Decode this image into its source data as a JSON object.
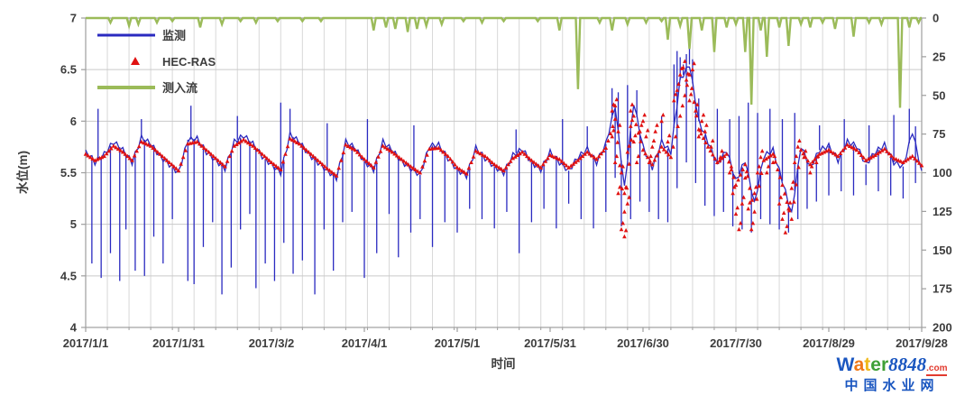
{
  "chart_data": {
    "type": "line",
    "title": "",
    "xlabel": "时间",
    "ylabel_left": "水位(m)",
    "ylabel_right": "",
    "legend": {
      "position": "top-left",
      "items": [
        "监测",
        "HEC-RAS",
        "测入流"
      ]
    },
    "x_axis": {
      "total_days": 270,
      "tick_days": [
        0,
        30,
        60,
        90,
        120,
        150,
        180,
        210,
        240,
        270
      ],
      "tick_labels": [
        "2017/1/1",
        "2017/1/31",
        "2017/3/2",
        "2017/4/1",
        "2017/5/1",
        "2017/5/31",
        "2017/6/30",
        "2017/7/30",
        "2017/8/29",
        "2017/9/28"
      ],
      "grid_every_days": 7
    },
    "y_left": {
      "min": 4,
      "max": 7,
      "ticks": [
        7,
        6.5,
        6,
        5.5,
        5,
        4.5,
        4
      ]
    },
    "y_right": {
      "min": 0,
      "max": 200,
      "ticks": [
        0,
        25,
        50,
        75,
        100,
        125,
        150,
        175,
        200
      ],
      "inverted": true
    },
    "colors": {
      "monitoring": "#2a2ac0",
      "hecras": "#e01212",
      "inflow": "#9bbb59",
      "grid": "#d8d8d8",
      "border": "#9e9e9e",
      "text": "#3d3d3d"
    },
    "series": [
      {
        "name": "监测",
        "type": "line",
        "axis": "left",
        "color": "#2a2ac0",
        "x_step_days": 3,
        "noise_amp": 0.025,
        "y": [
          5.72,
          5.6,
          5.68,
          5.8,
          5.72,
          5.6,
          5.84,
          5.78,
          5.66,
          5.58,
          5.5,
          5.82,
          5.83,
          5.7,
          5.62,
          5.54,
          5.8,
          5.86,
          5.78,
          5.66,
          5.58,
          5.5,
          5.87,
          5.8,
          5.68,
          5.6,
          5.52,
          5.45,
          5.8,
          5.74,
          5.61,
          5.53,
          5.8,
          5.72,
          5.61,
          5.54,
          5.48,
          5.76,
          5.77,
          5.64,
          5.53,
          5.47,
          5.74,
          5.64,
          5.56,
          5.5,
          5.67,
          5.73,
          5.6,
          5.53,
          5.7,
          5.6,
          5.52,
          5.65,
          5.73,
          5.6,
          5.78,
          6.15,
          5.35,
          6.18,
          5.75,
          5.55,
          5.8,
          5.7,
          6.4,
          6.55,
          6.0,
          5.8,
          5.58,
          5.72,
          5.42,
          5.62,
          5.2,
          5.66,
          5.72,
          5.42,
          5.1,
          5.76,
          5.55,
          5.72,
          5.76,
          5.62,
          5.8,
          5.76,
          5.58,
          5.7,
          5.77,
          5.6,
          5.56,
          5.9,
          5.52
        ],
        "down_spikes": [
          [
            2,
            4.62
          ],
          [
            5,
            4.48
          ],
          [
            8,
            4.72
          ],
          [
            11,
            4.45
          ],
          [
            13,
            4.95
          ],
          [
            16,
            4.55
          ],
          [
            19,
            4.5
          ],
          [
            22,
            4.88
          ],
          [
            25,
            4.62
          ],
          [
            28,
            5.05
          ],
          [
            33,
            4.45
          ],
          [
            35,
            4.42
          ],
          [
            38,
            4.78
          ],
          [
            41,
            5.02
          ],
          [
            44,
            4.32
          ],
          [
            47,
            4.58
          ],
          [
            50,
            4.95
          ],
          [
            53,
            5.1
          ],
          [
            55,
            4.38
          ],
          [
            58,
            4.62
          ],
          [
            61,
            4.45
          ],
          [
            64,
            4.82
          ],
          [
            67,
            4.52
          ],
          [
            70,
            4.65
          ],
          [
            74,
            4.32
          ],
          [
            77,
            4.95
          ],
          [
            80,
            4.55
          ],
          [
            83,
            5.02
          ],
          [
            86,
            5.12
          ],
          [
            90,
            4.48
          ],
          [
            94,
            4.72
          ],
          [
            98,
            5.1
          ],
          [
            101,
            4.68
          ],
          [
            105,
            4.92
          ],
          [
            108,
            5.05
          ],
          [
            112,
            4.78
          ],
          [
            116,
            5.02
          ],
          [
            120,
            4.92
          ],
          [
            124,
            5.15
          ],
          [
            128,
            5.05
          ],
          [
            132,
            4.96
          ],
          [
            136,
            5.12
          ],
          [
            140,
            4.72
          ],
          [
            144,
            5.02
          ],
          [
            148,
            5.15
          ],
          [
            152,
            4.96
          ],
          [
            156,
            5.2
          ],
          [
            160,
            5.05
          ],
          [
            164,
            4.96
          ],
          [
            168,
            5.12
          ],
          [
            171,
            5.45
          ],
          [
            173,
            4.98
          ],
          [
            176,
            5.05
          ],
          [
            179,
            5.22
          ],
          [
            182,
            5.12
          ],
          [
            185,
            5.05
          ],
          [
            188,
            5.02
          ],
          [
            191,
            5.35
          ],
          [
            194,
            5.6
          ],
          [
            197,
            5.4
          ],
          [
            200,
            5.18
          ],
          [
            203,
            5.08
          ],
          [
            206,
            5.12
          ],
          [
            209,
            4.98
          ],
          [
            212,
            4.95
          ],
          [
            215,
            4.92
          ],
          [
            218,
            5.05
          ],
          [
            221,
            5.0
          ],
          [
            224,
            4.95
          ],
          [
            227,
            4.92
          ],
          [
            230,
            5.05
          ],
          [
            233,
            5.15
          ],
          [
            236,
            5.22
          ],
          [
            240,
            5.28
          ],
          [
            244,
            5.32
          ],
          [
            248,
            5.28
          ],
          [
            252,
            5.38
          ],
          [
            256,
            5.32
          ],
          [
            260,
            5.28
          ],
          [
            264,
            5.25
          ],
          [
            268,
            5.4
          ]
        ],
        "up_spikes": [
          [
            4,
            6.12
          ],
          [
            18,
            6.02
          ],
          [
            34,
            6.15
          ],
          [
            49,
            6.05
          ],
          [
            63,
            6.18
          ],
          [
            66,
            6.12
          ],
          [
            78,
            5.98
          ],
          [
            91,
            6.02
          ],
          [
            106,
            5.96
          ],
          [
            139,
            5.92
          ],
          [
            154,
            6.02
          ],
          [
            162,
            5.95
          ],
          [
            170,
            6.32
          ],
          [
            172,
            6.28
          ],
          [
            175,
            6.35
          ],
          [
            178,
            6.3
          ],
          [
            186,
            6.05
          ],
          [
            190,
            6.55
          ],
          [
            191,
            6.68
          ],
          [
            192,
            6.62
          ],
          [
            193,
            6.55
          ],
          [
            194,
            6.65
          ],
          [
            195,
            6.72
          ],
          [
            196,
            6.6
          ],
          [
            198,
            6.22
          ],
          [
            204,
            6.12
          ],
          [
            208,
            6.02
          ],
          [
            211,
            6.05
          ],
          [
            214,
            6.18
          ],
          [
            217,
            6.08
          ],
          [
            221,
            6.12
          ],
          [
            225,
            6.02
          ],
          [
            229,
            6.08
          ],
          [
            237,
            5.96
          ],
          [
            245,
            6.02
          ],
          [
            253,
            5.96
          ],
          [
            261,
            6.06
          ],
          [
            266,
            6.12
          ],
          [
            268,
            5.95
          ]
        ]
      },
      {
        "name": "HEC-RAS",
        "type": "scatter-triangle",
        "axis": "left",
        "color": "#e01212",
        "x_step_days": 3,
        "marker_every_days": 0.75,
        "y": [
          5.68,
          5.62,
          5.66,
          5.76,
          5.7,
          5.62,
          5.8,
          5.76,
          5.68,
          5.6,
          5.52,
          5.78,
          5.8,
          5.72,
          5.64,
          5.56,
          5.76,
          5.82,
          5.76,
          5.68,
          5.6,
          5.53,
          5.83,
          5.78,
          5.7,
          5.62,
          5.54,
          5.47,
          5.77,
          5.72,
          5.63,
          5.55,
          5.76,
          5.7,
          5.63,
          5.56,
          5.5,
          5.73,
          5.74,
          5.66,
          5.55,
          5.49,
          5.71,
          5.66,
          5.58,
          5.52,
          5.64,
          5.7,
          5.62,
          5.55,
          5.67,
          5.63,
          5.55,
          5.62,
          5.7,
          5.63,
          5.74,
          6.02,
          5.12,
          6.05,
          5.72,
          5.58,
          5.75,
          5.65,
          6.05,
          6.45,
          5.92,
          5.75,
          5.6,
          5.68,
          5.38,
          5.58,
          5.12,
          5.62,
          5.68,
          5.38,
          5.05,
          5.72,
          5.58,
          5.68,
          5.72,
          5.66,
          5.77,
          5.72,
          5.62,
          5.67,
          5.73,
          5.64,
          5.6,
          5.66,
          5.57
        ],
        "scatter": [
          [
            170,
            5.85
          ],
          [
            170,
            6.1
          ],
          [
            171,
            5.6
          ],
          [
            171,
            6.15
          ],
          [
            172,
            5.3
          ],
          [
            172,
            5.9
          ],
          [
            173,
            4.95
          ],
          [
            173,
            5.5
          ],
          [
            174,
            4.88
          ],
          [
            174,
            5.3
          ],
          [
            175,
            5.2
          ],
          [
            175,
            5.7
          ],
          [
            176,
            5.95
          ],
          [
            176,
            6.1
          ],
          [
            177,
            5.8
          ],
          [
            178,
            5.6
          ],
          [
            179,
            5.9
          ],
          [
            180,
            6.0
          ],
          [
            181,
            5.85
          ],
          [
            182,
            5.6
          ],
          [
            183,
            5.75
          ],
          [
            184,
            5.9
          ],
          [
            186,
            6.0
          ],
          [
            188,
            5.8
          ],
          [
            190,
            6.2
          ],
          [
            191,
            6.3
          ],
          [
            192,
            6.45
          ],
          [
            193,
            6.52
          ],
          [
            194,
            6.4
          ],
          [
            195,
            6.2
          ],
          [
            196,
            6.5
          ],
          [
            197,
            6.1
          ],
          [
            198,
            5.85
          ],
          [
            199,
            6.0
          ],
          [
            200,
            5.9
          ],
          [
            202,
            5.75
          ],
          [
            205,
            5.65
          ],
          [
            208,
            5.5
          ],
          [
            209,
            5.3
          ],
          [
            210,
            5.1
          ],
          [
            211,
            4.95
          ],
          [
            212,
            5.2
          ],
          [
            213,
            5.45
          ],
          [
            214,
            5.15
          ],
          [
            215,
            4.95
          ],
          [
            216,
            5.3
          ],
          [
            217,
            5.5
          ],
          [
            218,
            5.65
          ],
          [
            220,
            5.5
          ],
          [
            222,
            5.6
          ],
          [
            224,
            5.2
          ],
          [
            225,
            5.05
          ],
          [
            226,
            4.92
          ],
          [
            227,
            5.15
          ],
          [
            228,
            5.35
          ],
          [
            229,
            5.6
          ],
          [
            230,
            5.75
          ],
          [
            232,
            5.65
          ],
          [
            234,
            5.5
          ],
          [
            236,
            5.6
          ]
        ]
      },
      {
        "name": "测入流",
        "type": "line",
        "axis": "right",
        "color": "#9bbb59",
        "baseline": 0,
        "events": [
          [
            8,
            3
          ],
          [
            14,
            5
          ],
          [
            17,
            4
          ],
          [
            23,
            3
          ],
          [
            28,
            2
          ],
          [
            37,
            6
          ],
          [
            44,
            4
          ],
          [
            50,
            2
          ],
          [
            55,
            3
          ],
          [
            62,
            2
          ],
          [
            70,
            2
          ],
          [
            76,
            2
          ],
          [
            93,
            8
          ],
          [
            97,
            6
          ],
          [
            100,
            7
          ],
          [
            104,
            9
          ],
          [
            107,
            7
          ],
          [
            110,
            5
          ],
          [
            115,
            4
          ],
          [
            122,
            2
          ],
          [
            128,
            3
          ],
          [
            135,
            2
          ],
          [
            146,
            2
          ],
          [
            153,
            8
          ],
          [
            159,
            46
          ],
          [
            166,
            3
          ],
          [
            170,
            8
          ],
          [
            175,
            4
          ],
          [
            181,
            3
          ],
          [
            186,
            2
          ],
          [
            188,
            14
          ],
          [
            192,
            5
          ],
          [
            195,
            20
          ],
          [
            199,
            8
          ],
          [
            203,
            22
          ],
          [
            207,
            6
          ],
          [
            210,
            4
          ],
          [
            213,
            22
          ],
          [
            215,
            56
          ],
          [
            218,
            8
          ],
          [
            220,
            25
          ],
          [
            224,
            6
          ],
          [
            227,
            18
          ],
          [
            231,
            4
          ],
          [
            234,
            6
          ],
          [
            238,
            3
          ],
          [
            242,
            7
          ],
          [
            248,
            12
          ],
          [
            253,
            3
          ],
          [
            257,
            4
          ],
          [
            263,
            58
          ],
          [
            266,
            6
          ],
          [
            269,
            3
          ]
        ]
      }
    ]
  },
  "watermark": {
    "word_letters": [
      {
        "ch": "W",
        "color": "#1a56c0"
      },
      {
        "ch": "a",
        "color": "#f07818"
      },
      {
        "ch": "t",
        "color": "#f0b818"
      },
      {
        "ch": "e",
        "color": "#3fa037"
      },
      {
        "ch": "r",
        "color": "#3fa037"
      }
    ],
    "number": "8848",
    "number_color": "#1a56c0",
    "dotcom": ".com",
    "dotcom_color": "#e23a2e",
    "subtitle": "中国水业网",
    "subtitle_color": "#1a56c0"
  }
}
